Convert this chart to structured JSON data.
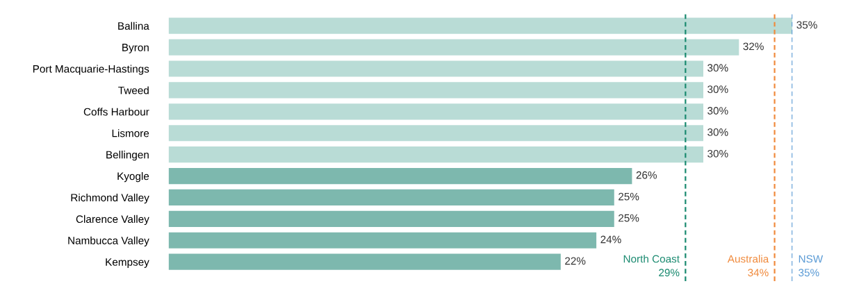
{
  "chart_data": {
    "type": "bar",
    "orientation": "horizontal",
    "categories": [
      "Ballina",
      "Byron",
      "Port Macquarie-Hastings",
      "Tweed",
      "Coffs Harbour",
      "Lismore",
      "Bellingen",
      "Kyogle",
      "Richmond Valley",
      "Clarence Valley",
      "Nambucca Valley",
      "Kempsey"
    ],
    "values": [
      35,
      32,
      30,
      30,
      30,
      30,
      30,
      26,
      25,
      25,
      24,
      22
    ],
    "colors": [
      "#b9dcd6",
      "#b9dcd6",
      "#b9dcd6",
      "#b9dcd6",
      "#b9dcd6",
      "#b9dcd6",
      "#b9dcd6",
      "#7db8ae",
      "#7db8ae",
      "#7db8ae",
      "#7db8ae",
      "#7db8ae"
    ],
    "value_labels": [
      "35%",
      "32%",
      "30%",
      "30%",
      "30%",
      "30%",
      "30%",
      "26%",
      "25%",
      "25%",
      "24%",
      "22%"
    ],
    "ref_lines": [
      {
        "axis": "x",
        "value": 29,
        "label": "North Coast\n29%",
        "color": "#1a8a70",
        "line_style": "dashed"
      },
      {
        "axis": "x",
        "value": 34,
        "label": "Australia\n34%",
        "color": "#f08a3c",
        "line_style": "dashed"
      },
      {
        "axis": "x",
        "value": 35,
        "label": "NSW\n35%",
        "color": "#5b9bd5",
        "line_style": "dashed"
      }
    ],
    "grid": false,
    "legend": false
  }
}
